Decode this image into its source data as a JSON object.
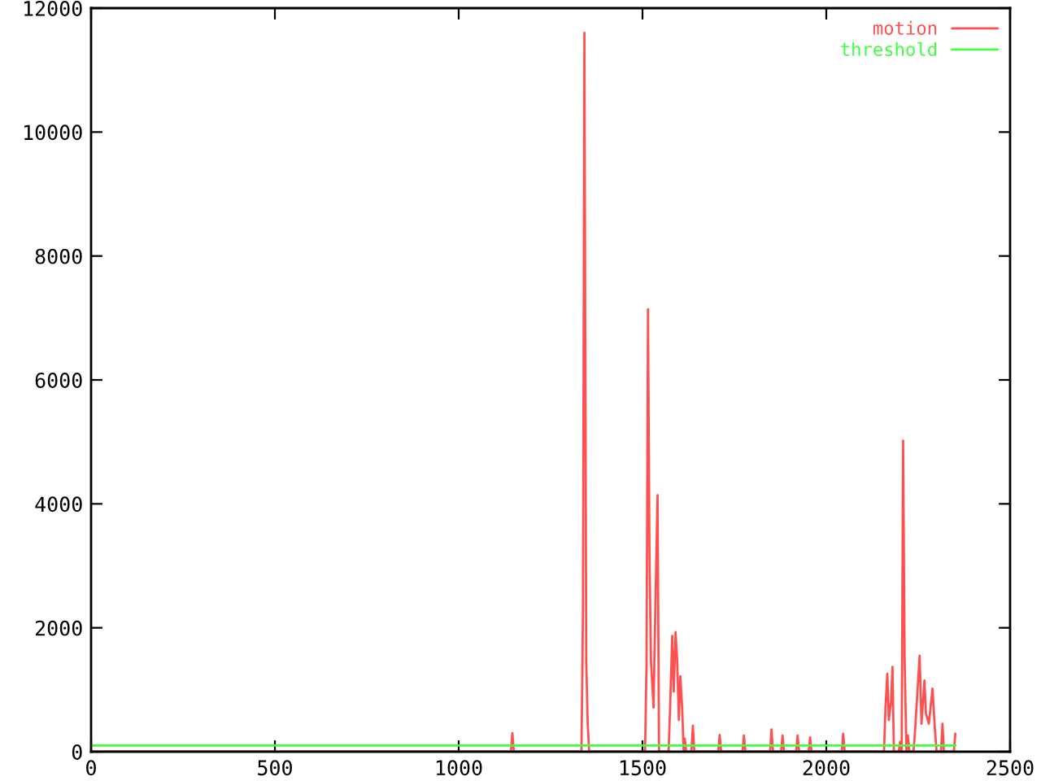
{
  "chart_data": {
    "type": "line",
    "xlim": [
      0,
      2500
    ],
    "ylim": [
      0,
      12000
    ],
    "xticks": [
      0,
      500,
      1000,
      1500,
      2000,
      2500
    ],
    "yticks": [
      0,
      2000,
      4000,
      6000,
      8000,
      10000,
      12000
    ],
    "grid": false,
    "legend": "top right",
    "marker": "none",
    "line_style": "solid",
    "series": [
      {
        "name": "motion",
        "color": "#ff5050",
        "x": [
          0,
          1142,
          1146,
          1150,
          1334,
          1338,
          1342,
          1347,
          1351,
          1355,
          1507,
          1511,
          1515,
          1519,
          1523,
          1530,
          1537,
          1541,
          1545,
          1571,
          1575,
          1581,
          1585,
          1590,
          1594,
          1599,
          1603,
          1608,
          1612,
          1615,
          1619,
          1633,
          1637,
          1641,
          1706,
          1710,
          1714,
          1772,
          1776,
          1780,
          1847,
          1851,
          1855,
          1877,
          1881,
          1885,
          1918,
          1922,
          1926,
          1952,
          1956,
          1960,
          2042,
          2046,
          2050,
          2157,
          2161,
          2166,
          2170,
          2176,
          2180,
          2184,
          2197,
          2201,
          2205,
          2209,
          2213,
          2218,
          2222,
          2226,
          2237,
          2241,
          2248,
          2254,
          2259,
          2267,
          2271,
          2279,
          2289,
          2295,
          2300,
          2312,
          2316,
          2320,
          2347,
          2351
        ],
        "values": [
          0,
          0,
          300,
          0,
          0,
          2240,
          11600,
          1440,
          450,
          0,
          0,
          1410,
          7140,
          3190,
          1480,
          710,
          2940,
          4140,
          0,
          0,
          690,
          1870,
          970,
          1930,
          1520,
          510,
          1220,
          690,
          0,
          210,
          0,
          0,
          420,
          0,
          0,
          270,
          0,
          0,
          260,
          0,
          0,
          360,
          0,
          0,
          260,
          0,
          0,
          260,
          0,
          0,
          230,
          0,
          0,
          290,
          0,
          0,
          710,
          1260,
          510,
          800,
          1370,
          0,
          0,
          160,
          0,
          5020,
          1520,
          0,
          260,
          0,
          0,
          290,
          970,
          1550,
          450,
          1150,
          620,
          450,
          1020,
          400,
          0,
          0,
          450,
          0,
          0,
          290
        ]
      },
      {
        "name": "threshold",
        "color": "#40ff40",
        "x": [
          0,
          2351
        ],
        "values": [
          100,
          100
        ]
      }
    ]
  }
}
